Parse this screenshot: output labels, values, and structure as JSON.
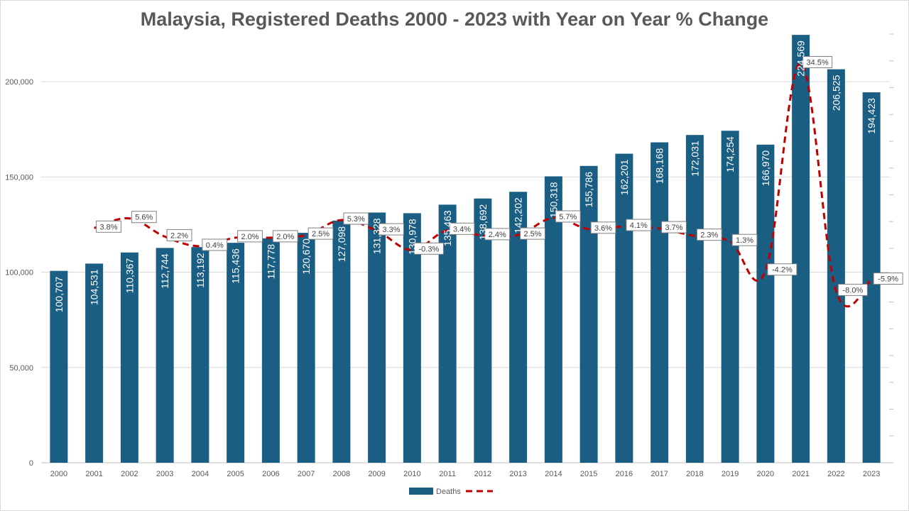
{
  "chart_data": {
    "type": "bar",
    "title": "Malaysia, Registered Deaths 2000 - 2023 with Year on Year % Change",
    "categories": [
      "2000",
      "2001",
      "2002",
      "2003",
      "2004",
      "2005",
      "2006",
      "2007",
      "2008",
      "2009",
      "2010",
      "2011",
      "2012",
      "2013",
      "2014",
      "2015",
      "2016",
      "2017",
      "2018",
      "2019",
      "2020",
      "2021",
      "2022",
      "2023"
    ],
    "series": [
      {
        "name": "Deaths",
        "type": "bar",
        "color": "#1a5e84",
        "values": [
          100707,
          104531,
          110367,
          112744,
          113192,
          115436,
          117778,
          120670,
          127098,
          131328,
          130978,
          135463,
          138692,
          142202,
          150318,
          155786,
          162201,
          168168,
          172031,
          174254,
          166970,
          224569,
          206525,
          194423
        ],
        "labels": [
          "100,707",
          "104,531",
          "110,367",
          "112,744",
          "113,192",
          "115,436",
          "117,778",
          "120,670",
          "127,098",
          "131,328",
          "130,978",
          "135,463",
          "138,692",
          "142,202",
          "150,318",
          "155,786",
          "162,201",
          "168,168",
          "172,031",
          "174,254",
          "166,970",
          "224,569",
          "206,525",
          "194,423"
        ]
      },
      {
        "name": "",
        "type": "line",
        "style": "dashed",
        "color": "#c00000",
        "axis": "secondary",
        "values": [
          null,
          3.8,
          5.6,
          2.2,
          0.4,
          2.0,
          2.0,
          2.5,
          5.3,
          3.3,
          -0.3,
          3.4,
          2.4,
          2.5,
          5.7,
          3.6,
          4.1,
          3.7,
          2.3,
          1.3,
          -4.2,
          34.5,
          -8.0,
          -5.9
        ],
        "labels": [
          "",
          "3.8%",
          "5.6%",
          "2.2%",
          "0.4%",
          "2.0%",
          "2.0%",
          "2.5%",
          "5.3%",
          "3.3%",
          "-0.3%",
          "3.4%",
          "2.4%",
          "2.5%",
          "5.7%",
          "3.6%",
          "4.1%",
          "3.7%",
          "2.3%",
          "1.3%",
          "-4.2%",
          "34.5%",
          "-8.0%",
          "-5.9%"
        ]
      }
    ],
    "y_axis": {
      "ylim": [
        0,
        225000
      ],
      "ticks": [
        0,
        50000,
        100000,
        150000,
        200000
      ],
      "tick_labels": [
        "0",
        "50,000",
        "100,000",
        "150,000",
        "200,000"
      ]
    },
    "y2_axis": {
      "ylim": [
        -40,
        40
      ],
      "tick_labels_shown": false
    },
    "grid": true,
    "legend": {
      "position": "bottom",
      "entries": [
        "Deaths",
        ""
      ]
    }
  }
}
